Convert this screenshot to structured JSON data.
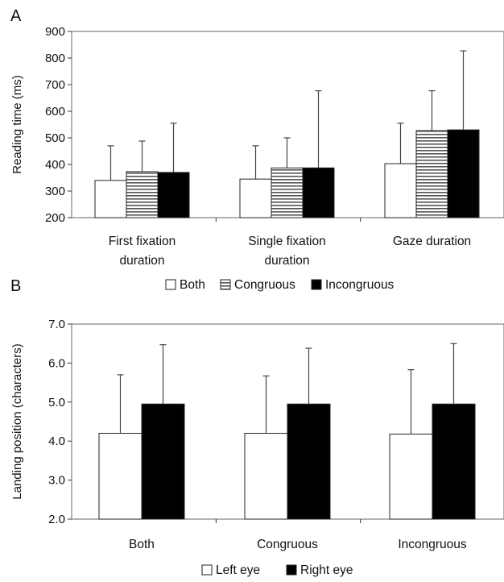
{
  "panels": [
    {
      "letter": "A",
      "chart_data": {
        "type": "bar",
        "title": "",
        "xlabel": "",
        "ylabel": "Reading time (ms)",
        "ylim": [
          200,
          900
        ],
        "yticks": [
          200,
          300,
          400,
          500,
          600,
          700,
          800,
          900
        ],
        "categories": [
          [
            "First fixation",
            "duration"
          ],
          [
            "Single fixation",
            "duration"
          ],
          [
            "Gaze duration"
          ]
        ],
        "series": [
          {
            "name": "Both",
            "values": [
              340,
              345,
              403
            ],
            "error_upper": [
              470,
              470,
              555
            ]
          },
          {
            "name": "Congruous",
            "values": [
              373,
              387,
              527
            ],
            "error_upper": [
              488,
              500,
              677
            ]
          },
          {
            "name": "Incongruous",
            "values": [
              370,
              387,
              530
            ],
            "error_upper": [
              555,
              677,
              827
            ]
          }
        ],
        "legend_position": "bottom",
        "grid": false,
        "colors": {
          "Both": "#ffffff",
          "Congruous": "horizontal-stripes",
          "Incongruous": "#000000"
        }
      }
    },
    {
      "letter": "B",
      "chart_data": {
        "type": "bar",
        "title": "",
        "xlabel": "",
        "ylabel": "Landing position (characters)",
        "ylim": [
          2.0,
          7.0
        ],
        "yticks": [
          "2.0",
          "3.0",
          "4.0",
          "5.0",
          "6.0",
          "7.0"
        ],
        "categories": [
          [
            "Both"
          ],
          [
            "Congruous"
          ],
          [
            "Incongruous"
          ]
        ],
        "series": [
          {
            "name": "Left eye",
            "values": [
              4.2,
              4.2,
              4.18
            ],
            "error_upper": [
              5.7,
              5.67,
              5.83
            ]
          },
          {
            "name": "Right eye",
            "values": [
              4.95,
              4.95,
              4.95
            ],
            "error_upper": [
              6.47,
              6.38,
              6.5
            ]
          }
        ],
        "legend_position": "bottom",
        "grid": false,
        "colors": {
          "Left eye": "#ffffff",
          "Right eye": "#000000"
        }
      }
    }
  ]
}
